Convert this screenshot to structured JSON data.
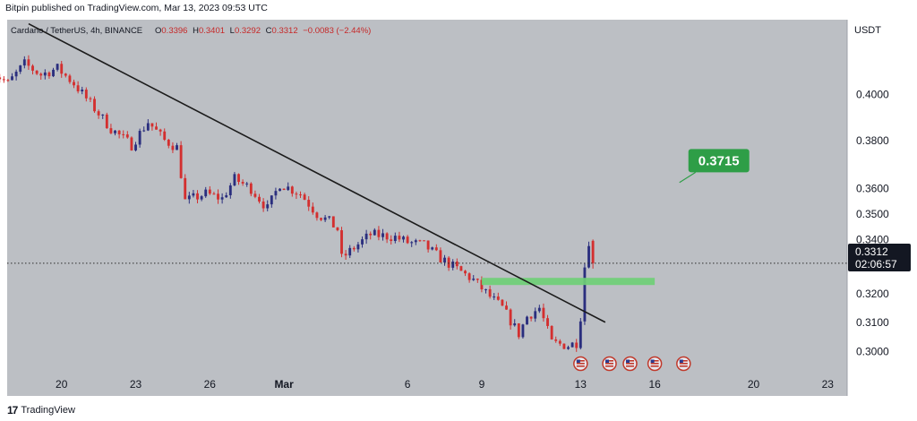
{
  "publisher_line": "Bitpin published on TradingView.com, Mar 13, 2023 09:53 UTC",
  "legend": {
    "symbol": "Cardano / TetherUS, 4h, BINANCE",
    "open_label": "O",
    "open": "0.3396",
    "high_label": "H",
    "high": "0.3401",
    "low_label": "L",
    "low": "0.3292",
    "close_label": "C",
    "close": "0.3312",
    "change": "−0.0083 (−2.44%)"
  },
  "price_axis": {
    "currency": "USDT",
    "current_price": "0.3312",
    "countdown": "02:06:57"
  },
  "target_label": "0.3715",
  "footer": {
    "logo_text": "17",
    "brand": "TradingView"
  },
  "colors": {
    "bull": "#2a2e7e",
    "bear": "#d32f2f",
    "plot_bg": "#bcbfc4",
    "target": "#2e9e47",
    "zone": "#6fcf76"
  },
  "chart_data": {
    "type": "candlestick",
    "title": "Cardano / TetherUS, 4h, BINANCE",
    "scale": "log",
    "ylim": [
      0.293,
      0.435
    ],
    "y_ticks": [
      "0.4000",
      "0.3800",
      "0.3600",
      "0.3500",
      "0.3400",
      "0.3200",
      "0.3100",
      "0.3000"
    ],
    "x_ticks": [
      "20",
      "23",
      "26",
      "Mar",
      "6",
      "9",
      "13",
      "16",
      "20",
      "23"
    ],
    "price_path": [
      [
        "Feb 17 00:00",
        0.412
      ],
      [
        "Feb 17 20:00",
        0.405
      ],
      [
        "Feb 18 12:00",
        0.414
      ],
      [
        "Feb 19 04:00",
        0.409
      ],
      [
        "Feb 19 20:00",
        0.412
      ],
      [
        "Feb 20 12:00",
        0.405
      ],
      [
        "Feb 21 04:00",
        0.396
      ],
      [
        "Feb 22 00:00",
        0.385
      ],
      [
        "Feb 22 20:00",
        0.378
      ],
      [
        "Feb 23 12:00",
        0.388
      ],
      [
        "Feb 24 04:00",
        0.38
      ],
      [
        "Feb 24 16:00",
        0.377
      ],
      [
        "Feb 25 00:00",
        0.355
      ],
      [
        "Feb 25 20:00",
        0.358
      ],
      [
        "Feb 26 12:00",
        0.356
      ],
      [
        "Feb 27 00:00",
        0.364
      ],
      [
        "Feb 27 16:00",
        0.36
      ],
      [
        "Feb 28 08:00",
        0.352
      ],
      [
        "Feb 28 20:00",
        0.362
      ],
      [
        "Mar 1 16:00",
        0.358
      ],
      [
        "Mar 2 08:00",
        0.35
      ],
      [
        "Mar 2 20:00",
        0.347
      ],
      [
        "Mar 3 04:00",
        0.344
      ],
      [
        "Mar 3 08:00",
        0.333
      ],
      [
        "Mar 3 20:00",
        0.337
      ],
      [
        "Mar 4 12:00",
        0.342
      ],
      [
        "Mar 5 12:00",
        0.341
      ],
      [
        "Mar 6 00:00",
        0.339
      ],
      [
        "Mar 6 16:00",
        0.338
      ],
      [
        "Mar 7 08:00",
        0.333
      ],
      [
        "Mar 8 00:00",
        0.329
      ],
      [
        "Mar 8 16:00",
        0.325
      ],
      [
        "Mar 9 08:00",
        0.319
      ],
      [
        "Mar 9 20:00",
        0.315
      ],
      [
        "Mar 10 12:00",
        0.306
      ],
      [
        "Mar 10 20:00",
        0.312
      ],
      [
        "Mar 11 08:00",
        0.315
      ],
      [
        "Mar 11 20:00",
        0.303
      ],
      [
        "Mar 12 12:00",
        0.302
      ],
      [
        "Mar 12 20:00",
        0.303
      ],
      [
        "Mar 13 00:00",
        0.312
      ],
      [
        "Mar 13 04:00",
        0.33
      ],
      [
        "Mar 13 08:00",
        0.3396
      ]
    ],
    "last_candle": {
      "open": 0.3396,
      "high": 0.3401,
      "low": 0.3292,
      "close": 0.3312
    },
    "trendline": {
      "start": [
        "Feb 18 16:00",
        0.433
      ],
      "end": [
        "Mar 14 00:00",
        0.31
      ]
    },
    "zone": {
      "start": "Mar 9 00:00",
      "end": "Mar 16 00:00",
      "low": 0.3232,
      "high": 0.3258
    },
    "target": {
      "price": 0.3715,
      "anchor_price": 0.3625,
      "anchor_time": "Mar 17 00:00"
    },
    "events": [
      "Mar 13 00:00",
      "Mar 14 04:00",
      "Mar 15 00:00",
      "Mar 16 00:00",
      "Mar 17 04:00"
    ]
  }
}
